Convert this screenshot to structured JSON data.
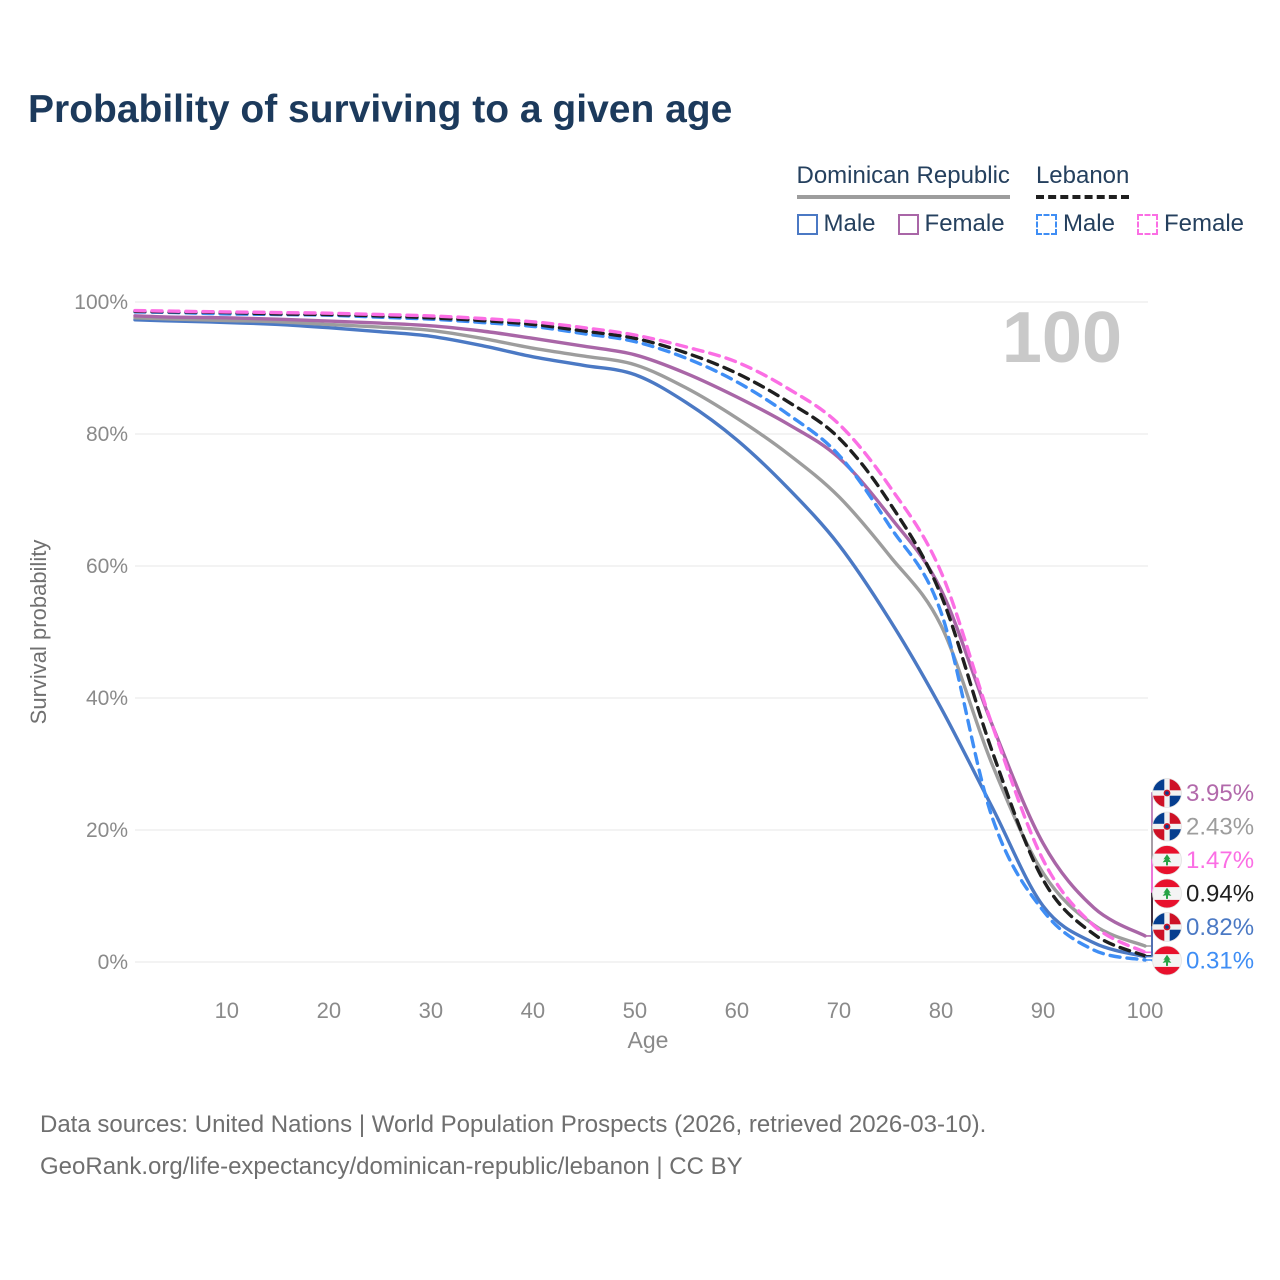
{
  "title": "Probability of surviving to a given age",
  "watermark_age": "100",
  "legend": {
    "groups": [
      {
        "label": "Dominican Republic",
        "line_style": "solid",
        "line_color": "#9d9d9d",
        "items": [
          {
            "label": "Male",
            "color": "#4b79c4",
            "style": "solid"
          },
          {
            "label": "Female",
            "color": "#a966a7",
            "style": "solid"
          }
        ]
      },
      {
        "label": "Lebanon",
        "line_style": "dashed",
        "line_color": "#1f1f1f",
        "items": [
          {
            "label": "Male",
            "color": "#3f8ef5",
            "style": "dashed"
          },
          {
            "label": "Female",
            "color": "#fb6ee4",
            "style": "dashed"
          }
        ]
      }
    ]
  },
  "chart_data": {
    "type": "line",
    "title": "Probability of surviving to a given age",
    "xlabel": "Age",
    "ylabel": "Survival probability",
    "xlim": [
      1,
      100
    ],
    "ylim": [
      0,
      100
    ],
    "x_ticks": [
      10,
      20,
      30,
      40,
      50,
      60,
      70,
      80,
      90,
      100
    ],
    "y_ticks": [
      "0%",
      "20%",
      "40%",
      "60%",
      "80%",
      "100%"
    ],
    "grid": "horizontal",
    "legend_position": "top-right",
    "x": [
      1,
      5,
      10,
      15,
      20,
      25,
      30,
      35,
      40,
      45,
      50,
      55,
      60,
      65,
      70,
      75,
      80,
      85,
      90,
      95,
      100
    ],
    "series": [
      {
        "name": "Dominican Republic — Male",
        "country": "Dominican Republic",
        "sex": "Male",
        "color": "#4b79c4",
        "dash": "solid",
        "end_label": "0.82%",
        "values": [
          97.3,
          97.1,
          96.9,
          96.6,
          96.1,
          95.5,
          94.8,
          93.4,
          91.7,
          90.4,
          89.0,
          84.8,
          79.1,
          71.8,
          63.2,
          51.8,
          38.5,
          23.5,
          8.5,
          2.9,
          0.82
        ]
      },
      {
        "name": "Dominican Republic — Both sexes",
        "country": "Dominican Republic",
        "sex": "Both",
        "color": "#9d9d9d",
        "dash": "solid",
        "end_label": "2.43%",
        "values": [
          97.6,
          97.4,
          97.2,
          97.0,
          96.6,
          96.2,
          95.7,
          94.5,
          93.0,
          91.8,
          90.5,
          87.0,
          82.4,
          77.0,
          70.5,
          61.5,
          51.0,
          30.0,
          13.5,
          5.6,
          2.43
        ]
      },
      {
        "name": "Dominican Republic — Female",
        "country": "Dominican Republic",
        "sex": "Female",
        "color": "#a966a7",
        "dash": "solid",
        "end_label": "3.95%",
        "values": [
          97.9,
          97.7,
          97.6,
          97.4,
          97.1,
          96.8,
          96.4,
          95.6,
          94.5,
          93.3,
          92.0,
          89.2,
          85.6,
          81.5,
          76.4,
          67.5,
          56.4,
          36.0,
          18.0,
          8.2,
          3.95
        ]
      },
      {
        "name": "Lebanon — Male",
        "country": "Lebanon",
        "sex": "Male",
        "color": "#3f8ef5",
        "dash": "dashed",
        "end_label": "0.31%",
        "values": [
          98.5,
          98.4,
          98.2,
          98.1,
          98.0,
          97.7,
          97.4,
          96.9,
          96.3,
          95.2,
          94.0,
          91.5,
          87.9,
          83.0,
          76.8,
          66.0,
          53.0,
          22.0,
          7.8,
          1.8,
          0.31
        ]
      },
      {
        "name": "Lebanon — Both sexes",
        "country": "Lebanon",
        "sex": "Both",
        "color": "#1f1f1f",
        "dash": "dashed",
        "end_label": "0.94%",
        "values": [
          98.6,
          98.5,
          98.4,
          98.2,
          98.1,
          97.9,
          97.6,
          97.2,
          96.6,
          95.6,
          94.5,
          92.3,
          89.2,
          84.9,
          79.4,
          69.5,
          55.6,
          32.0,
          12.5,
          4.2,
          0.94
        ]
      },
      {
        "name": "Lebanon — Female",
        "country": "Lebanon",
        "sex": "Female",
        "color": "#fb6ee4",
        "dash": "dashed",
        "end_label": "1.47%",
        "values": [
          98.7,
          98.6,
          98.5,
          98.4,
          98.3,
          98.1,
          97.9,
          97.5,
          97.0,
          96.1,
          95.0,
          93.2,
          90.9,
          86.9,
          81.5,
          72.0,
          59.1,
          36.0,
          15.5,
          5.5,
          1.47
        ]
      }
    ],
    "end_labels": [
      {
        "value": "3.95%",
        "color": "#b269ab",
        "flag": "dominican-republic",
        "series": "Dominican Republic — Female"
      },
      {
        "value": "2.43%",
        "color": "#9d9d9d",
        "flag": "dominican-republic",
        "series": "Dominican Republic — Both sexes"
      },
      {
        "value": "1.47%",
        "color": "#fb6ee4",
        "flag": "lebanon",
        "series": "Lebanon — Female"
      },
      {
        "value": "0.94%",
        "color": "#1f1f1f",
        "flag": "lebanon",
        "series": "Lebanon — Both sexes"
      },
      {
        "value": "0.82%",
        "color": "#4b79c4",
        "flag": "dominican-republic",
        "series": "Dominican Republic — Male"
      },
      {
        "value": "0.31%",
        "color": "#3f8ef5",
        "flag": "lebanon",
        "series": "Lebanon — Male"
      }
    ]
  },
  "footer": {
    "line1": "Data sources: United Nations | World Population Prospects (2026, retrieved 2026-03-10).",
    "line2": "GeoRank.org/life-expectancy/dominican-republic/lebanon | CC BY"
  }
}
